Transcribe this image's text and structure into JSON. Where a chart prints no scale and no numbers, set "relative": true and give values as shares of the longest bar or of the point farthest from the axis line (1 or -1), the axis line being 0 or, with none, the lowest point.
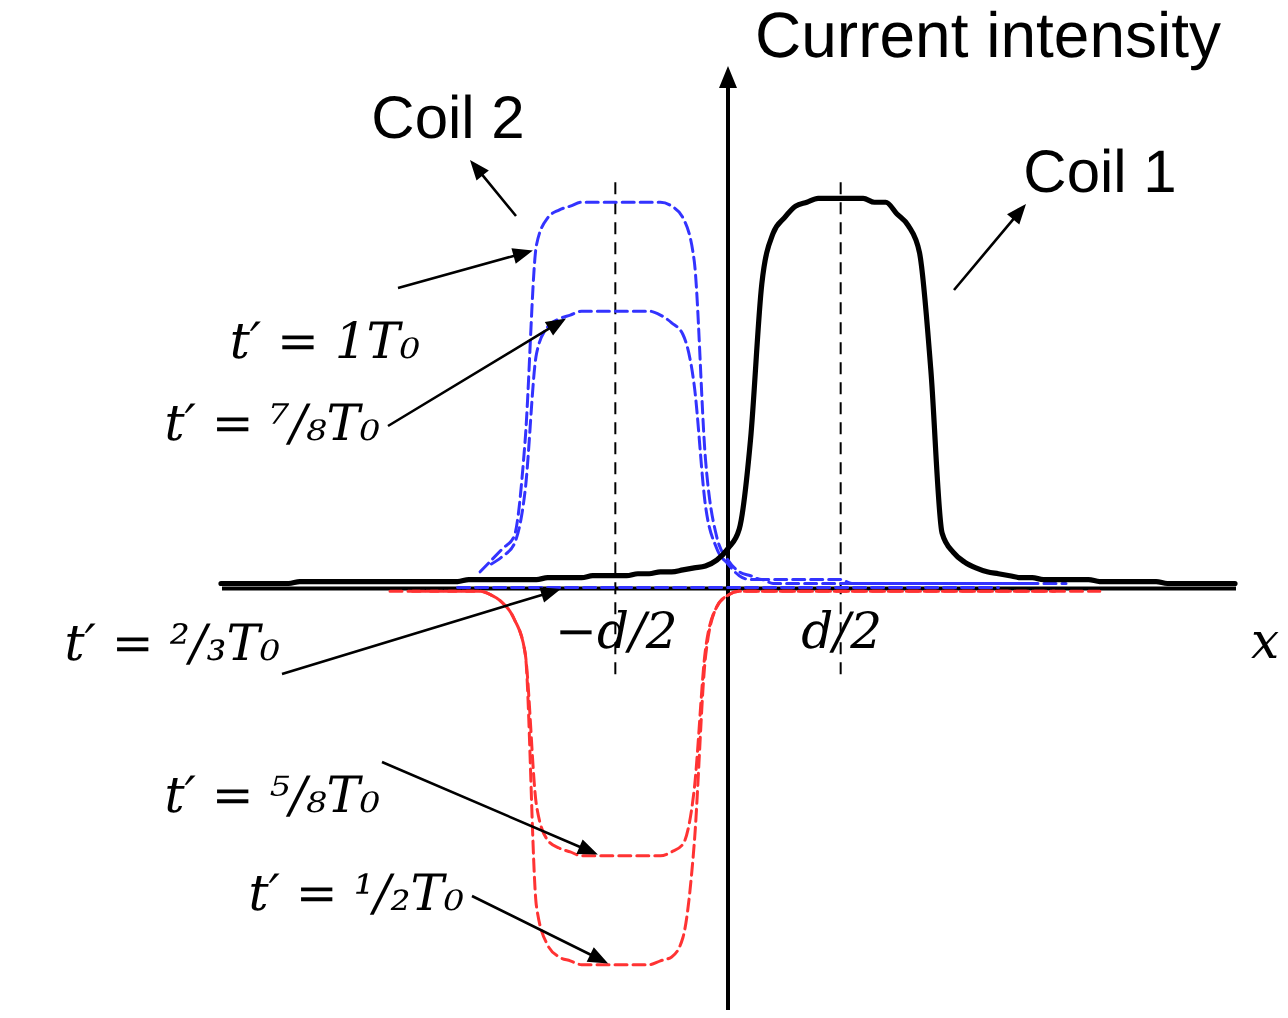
{
  "chart_data": {
    "type": "line",
    "relative": true,
    "ylabel": "Current intensity",
    "xlabel": "x",
    "categories": [
      null,
      null,
      null,
      null,
      null,
      null,
      null,
      null,
      null,
      null,
      null,
      null,
      null,
      null,
      null,
      null,
      null,
      null,
      null,
      null,
      null,
      null,
      null,
      null,
      null,
      null,
      null,
      null,
      null,
      null,
      null,
      null,
      null,
      null,
      null,
      "−d/2",
      null,
      null,
      null,
      null,
      null,
      null,
      null,
      null,
      null,
      null,
      null,
      null,
      null,
      null,
      null,
      null,
      null,
      null,
      null,
      "d/2",
      null,
      null,
      null,
      null,
      null,
      null,
      null,
      null,
      null,
      null,
      null,
      null,
      null,
      null,
      null,
      null,
      null,
      null,
      null,
      null,
      null,
      null,
      null,
      null,
      null,
      null,
      null,
      null,
      null,
      null,
      null,
      null,
      null,
      null,
      null
    ],
    "series": [
      {
        "color": "#3333ff",
        "line_style": "dashed",
        "values": [
          null,
          null,
          null,
          null,
          null,
          null,
          null,
          null,
          null,
          null,
          null,
          null,
          null,
          null,
          null,
          null,
          null,
          null,
          null,
          null,
          null,
          null,
          null,
          0.04,
          0.07,
          0.1,
          0.13,
          0.38,
          0.88,
          0.95,
          0.97,
          0.98,
          0.99,
          0.99,
          0.99,
          0.99,
          0.99,
          0.99,
          0.99,
          0.99,
          0.98,
          0.95,
          0.84,
          0.33,
          0.13,
          0.07,
          0.04,
          0.03,
          0.02,
          0.02,
          0.02,
          0.02,
          0.02,
          0.02,
          0.02,
          0.02,
          0.01,
          0.01,
          0.01,
          0.01,
          0.01,
          0.01,
          0.01,
          0.01,
          0.01,
          0.01,
          0.01,
          0.01,
          0.01,
          0.01,
          0.01,
          0.01,
          0.01,
          0.01,
          0.01,
          0.01,
          null,
          null,
          null,
          null,
          null,
          null,
          null,
          null,
          null,
          null,
          null,
          null,
          null,
          null,
          null
        ]
      },
      {
        "color": "#3333ff",
        "line_style": "dashed",
        "values": [
          null,
          null,
          null,
          null,
          null,
          null,
          null,
          null,
          null,
          null,
          null,
          null,
          null,
          null,
          null,
          null,
          null,
          null,
          null,
          null,
          null,
          null,
          null,
          null,
          0.06,
          0.08,
          0.11,
          0.25,
          0.6,
          0.67,
          0.69,
          0.7,
          0.71,
          0.71,
          0.71,
          0.71,
          0.71,
          0.71,
          0.71,
          0.7,
          0.68,
          0.65,
          0.52,
          0.21,
          0.1,
          0.06,
          0.03,
          0.02,
          0.02,
          0.01,
          0.01,
          0.01,
          0.01,
          0.01,
          0.01,
          0.01,
          0.01,
          0.01,
          0.01,
          0.01,
          0.01,
          0.01,
          0.01,
          0.01,
          0.01,
          0.01,
          0.01,
          0.01,
          0.01,
          0.01,
          0.01,
          0.01,
          0.01,
          null,
          null,
          null,
          null,
          null,
          null,
          null,
          null,
          null,
          null,
          null,
          null,
          null,
          null,
          null,
          null,
          null,
          null
        ]
      },
      {
        "color": "#3333ff",
        "line_style": "dashed",
        "values": [
          null,
          null,
          null,
          null,
          null,
          null,
          null,
          null,
          null,
          null,
          null,
          null,
          null,
          null,
          null,
          null,
          null,
          null,
          null,
          null,
          null,
          0,
          0,
          0,
          0,
          0,
          0,
          0,
          0,
          0,
          0,
          0,
          0,
          0,
          0,
          0,
          0,
          0,
          0,
          0,
          0,
          0,
          0,
          0,
          0,
          0,
          0,
          0,
          0,
          0,
          0,
          0,
          0,
          0,
          0,
          0,
          0,
          0,
          0,
          0,
          0,
          0,
          0,
          0,
          0,
          0,
          0,
          0,
          0,
          0,
          null,
          null,
          null,
          null,
          null,
          null,
          null,
          null,
          null,
          null,
          null,
          null,
          null,
          null,
          null,
          null,
          null,
          null,
          null,
          null,
          null
        ]
      },
      {
        "color": "#ff3333",
        "line_style": "dashed",
        "values": [
          null,
          null,
          null,
          null,
          null,
          null,
          null,
          null,
          null,
          null,
          null,
          null,
          null,
          null,
          null,
          null,
          null,
          -0.01,
          -0.01,
          -0.01,
          -0.01,
          -0.01,
          -0.01,
          -0.01,
          -0.02,
          -0.04,
          -0.08,
          -0.17,
          -0.56,
          -0.65,
          -0.67,
          -0.68,
          -0.69,
          -0.69,
          -0.69,
          -0.69,
          -0.69,
          -0.69,
          -0.69,
          -0.69,
          -0.68,
          -0.66,
          -0.52,
          -0.16,
          -0.05,
          -0.02,
          -0.01,
          -0.01,
          -0.01,
          -0.01,
          -0.01,
          -0.01,
          -0.01,
          -0.01,
          -0.01,
          -0.01,
          -0.01,
          -0.01,
          -0.01,
          -0.01,
          -0.01,
          -0.01,
          -0.01,
          -0.01,
          -0.01,
          -0.01,
          -0.01,
          -0.01,
          -0.01,
          -0.01,
          -0.01,
          -0.01,
          -0.01,
          -0.01,
          -0.01,
          null,
          null,
          null,
          null,
          null,
          null,
          null,
          null,
          null,
          null,
          null,
          null,
          null,
          null,
          null,
          null
        ]
      },
      {
        "color": "#ff3333",
        "line_style": "dashed",
        "values": [
          null,
          null,
          null,
          null,
          null,
          null,
          null,
          null,
          null,
          null,
          null,
          null,
          null,
          null,
          null,
          -0.01,
          -0.01,
          -0.01,
          -0.01,
          -0.01,
          -0.01,
          -0.01,
          -0.01,
          -0.01,
          -0.02,
          -0.04,
          -0.08,
          -0.17,
          -0.82,
          -0.92,
          -0.95,
          -0.96,
          -0.97,
          -0.97,
          -0.97,
          -0.97,
          -0.97,
          -0.97,
          -0.97,
          -0.96,
          -0.95,
          -0.9,
          -0.66,
          -0.18,
          -0.05,
          -0.02,
          -0.01,
          -0.01,
          -0.01,
          -0.01,
          -0.01,
          -0.01,
          -0.01,
          -0.01,
          -0.01,
          -0.01,
          -0.01,
          -0.01,
          -0.01,
          -0.01,
          -0.01,
          -0.01,
          -0.01,
          -0.01,
          -0.01,
          -0.01,
          -0.01,
          -0.01,
          -0.01,
          -0.01,
          -0.01,
          -0.01,
          -0.01,
          -0.01,
          -0.01,
          -0.01,
          -0.01,
          -0.01,
          -0.01,
          null,
          null,
          null,
          null,
          null,
          null,
          null,
          null,
          null,
          null,
          null,
          null
        ]
      },
      {
        "name": "Coil 1",
        "color": "#000000",
        "line_style": "solid",
        "values": [
          0.01,
          0.01,
          0.01,
          0.01,
          0.01,
          0.01,
          0.01,
          0.015,
          0.015,
          0.015,
          0.015,
          0.015,
          0.015,
          0.015,
          0.015,
          0.015,
          0.015,
          0.015,
          0.015,
          0.015,
          0.015,
          0.015,
          0.02,
          0.02,
          0.02,
          0.02,
          0.02,
          0.02,
          0.02,
          0.025,
          0.025,
          0.025,
          0.025,
          0.03,
          0.03,
          0.03,
          0.03,
          0.035,
          0.035,
          0.04,
          0.04,
          0.045,
          0.05,
          0.055,
          0.07,
          0.1,
          0.15,
          0.38,
          0.78,
          0.91,
          0.95,
          0.98,
          0.99,
          1.0,
          1.0,
          1.0,
          1.0,
          1.0,
          0.99,
          0.99,
          0.96,
          0.93,
          0.86,
          0.56,
          0.14,
          0.09,
          0.065,
          0.05,
          0.04,
          0.035,
          0.03,
          0.025,
          0.025,
          0.02,
          0.02,
          0.02,
          0.02,
          0.02,
          0.015,
          0.015,
          0.015,
          0.015,
          0.015,
          0.015,
          0.01,
          0.01,
          0.01,
          0.01,
          0.01,
          0.01,
          0.01
        ]
      }
    ],
    "ref_lines": [
      {
        "axis": "x",
        "value": "−d/2",
        "color": "#000000",
        "line_style": "dashed"
      },
      {
        "axis": "x",
        "value": "d/2",
        "color": "#000000",
        "line_style": "dashed"
      }
    ],
    "annotations": [
      "Coil 2",
      "t′ = 1T₀",
      "t′ = ⁷/₈T₀",
      "t′ = ²/₃T₀",
      "t′ = ⁵/₈T₀",
      "t′ = ¹/₂T₀"
    ]
  }
}
